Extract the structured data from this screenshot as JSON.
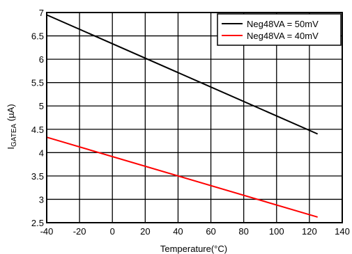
{
  "chart_data": {
    "type": "line",
    "title": "",
    "xlabel": "Temperature(°C)",
    "ylabel": {
      "main": "I",
      "subscript": "GATEA",
      "suffix": " (µA)"
    },
    "xlim": [
      -40,
      140
    ],
    "ylim": [
      2.5,
      7
    ],
    "x_ticks": [
      -40,
      -20,
      0,
      20,
      40,
      60,
      80,
      100,
      120,
      140
    ],
    "y_ticks": [
      2.5,
      3,
      3.5,
      4,
      4.5,
      5,
      5.5,
      6,
      6.5,
      7
    ],
    "x_tick_labels": [
      "-40",
      "-20",
      "0",
      "20",
      "40",
      "60",
      "80",
      "100",
      "120",
      "140"
    ],
    "y_tick_labels": [
      "2.5",
      "3",
      "3.5",
      "4",
      "4.5",
      "5",
      "5.5",
      "6",
      "6.5",
      "7"
    ],
    "grid": true,
    "legend_position": "top-right",
    "series": [
      {
        "name": "Neg48VA = 50mV",
        "color": "#000000",
        "x": [
          -40,
          125
        ],
        "y": [
          6.95,
          4.4
        ]
      },
      {
        "name": "Neg48VA = 40mV",
        "color": "#ff0000",
        "x": [
          -40,
          125
        ],
        "y": [
          4.33,
          2.62
        ]
      }
    ]
  }
}
